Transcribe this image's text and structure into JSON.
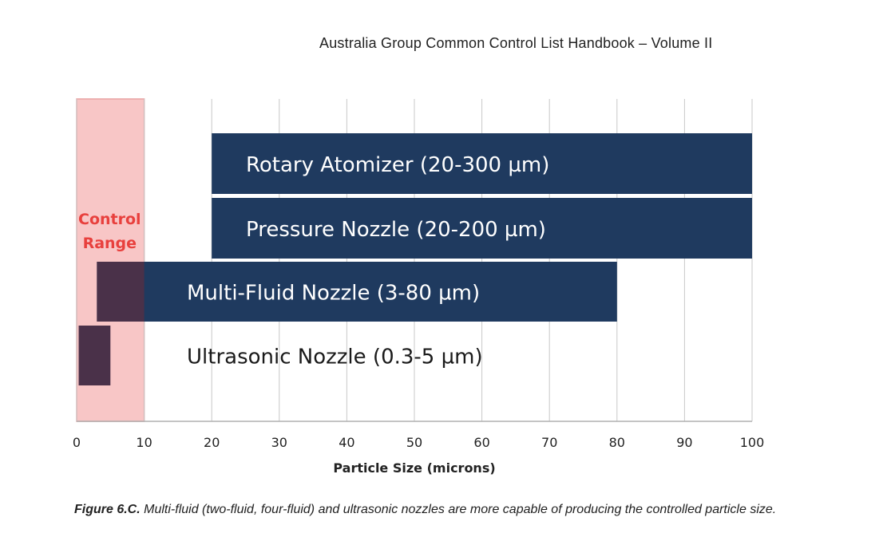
{
  "header": {
    "title": "Australia Group Common Control List Handbook – Volume II"
  },
  "chart_data": {
    "type": "bar",
    "orientation": "horizontal",
    "xlabel": "Particle Size (microns)",
    "xlim": [
      0,
      100
    ],
    "xticks": [
      0,
      10,
      20,
      30,
      40,
      50,
      60,
      70,
      80,
      90,
      100
    ],
    "grid": "vertical",
    "control_range": {
      "label_lines": [
        "Control",
        "Range"
      ],
      "start": 0,
      "end": 10,
      "color": "#f8c6c6",
      "label_color": "#e8403d"
    },
    "bar_color": "#1f3a5f",
    "overlap_color": "#4a3149",
    "bars": [
      {
        "label": "Rotary Atomizer (20-300 µm)",
        "start": 20,
        "end": 100
      },
      {
        "label": "Pressure Nozzle (20-200 µm)",
        "start": 20,
        "end": 100
      },
      {
        "label": "Multi-Fluid Nozzle (3-80 µm)",
        "start": 3,
        "end": 80
      },
      {
        "label": "Ultrasonic Nozzle (0.3-5 µm)",
        "start": 0.3,
        "end": 5
      }
    ]
  },
  "caption": {
    "label": "Figure 6.C.",
    "text": " Multi-fluid (two-fluid, four-fluid) and ultrasonic nozzles are more capable of producing the controlled particle size."
  }
}
